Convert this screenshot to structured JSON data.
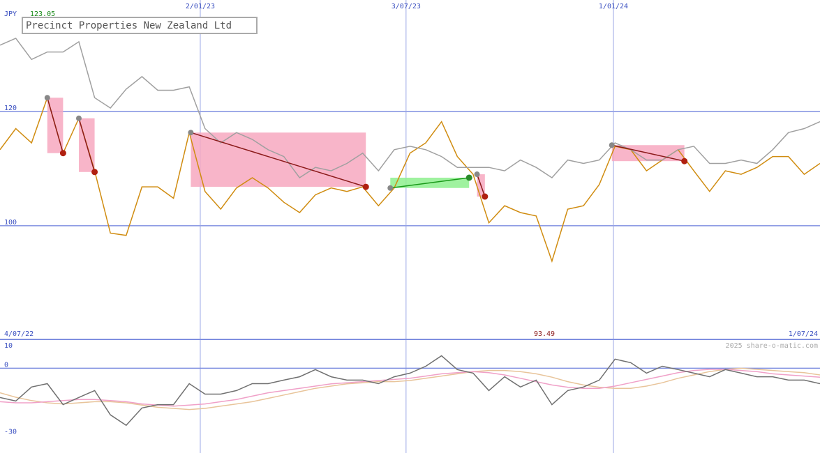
{
  "chart_data": [
    {
      "type": "line",
      "title": "Precinct Properties New Zealand Ltd",
      "currency": "JPY",
      "annotations": [
        {
          "text": "123.05",
          "color": "#1a8a1a"
        },
        {
          "text": "93.49",
          "color": "#8b1a1a"
        }
      ],
      "x": [
        0,
        2,
        4,
        6,
        8,
        10,
        12,
        14,
        16,
        18,
        20,
        22,
        24,
        26,
        28,
        30,
        32,
        34,
        36,
        38,
        40,
        42,
        44,
        46,
        48,
        50,
        52,
        54,
        56,
        58,
        60,
        62,
        64,
        66,
        68,
        70,
        72,
        74,
        76,
        78,
        80,
        82,
        84,
        86,
        88,
        90,
        92,
        94,
        96,
        98,
        100,
        102,
        104
      ],
      "xlim": [
        0,
        104
      ],
      "xticks": [
        {
          "value": 0,
          "label": "4/07/22"
        },
        {
          "value": 25.4,
          "label": "2/01/23"
        },
        {
          "value": 51.5,
          "label": "3/07/23"
        },
        {
          "value": 77.8,
          "label": "1/01/24"
        },
        {
          "value": 104,
          "label": "1/07/24"
        }
      ],
      "ylim": [
        80.1,
        139.5
      ],
      "yticks": [
        100,
        120
      ],
      "grid": true,
      "series": [
        {
          "color": "#d08c10",
          "values": [
            113.3,
            117.0,
            114.5,
            122.4,
            112.7,
            118.8,
            109.6,
            98.7,
            98.3,
            106.8,
            106.8,
            104.8,
            116.3,
            106.0,
            102.9,
            106.6,
            108.4,
            106.6,
            104.1,
            102.3,
            105.4,
            106.6,
            106.0,
            106.8,
            103.5,
            106.6,
            112.7,
            114.5,
            118.2,
            112.1,
            109.0,
            100.5,
            103.5,
            102.3,
            101.7,
            93.8,
            102.9,
            103.5,
            107.2,
            113.9,
            113.3,
            109.6,
            111.5,
            113.3,
            109.6,
            106.0,
            109.6,
            109.0,
            110.2,
            112.1,
            112.1,
            109.0,
            110.9
          ]
        },
        {
          "color": "#a0a0a0",
          "values": [
            131.6,
            132.8,
            129.1,
            130.4,
            130.4,
            132.2,
            122.4,
            120.6,
            123.9,
            126.1,
            123.7,
            123.7,
            124.3,
            117.0,
            114.5,
            116.3,
            115.1,
            113.3,
            112.1,
            108.4,
            110.2,
            109.6,
            110.9,
            112.7,
            109.6,
            113.3,
            113.9,
            113.3,
            112.1,
            110.2,
            110.2,
            110.2,
            109.6,
            111.5,
            110.2,
            108.4,
            111.5,
            110.9,
            111.5,
            114.5,
            113.3,
            111.5,
            111.5,
            113.3,
            113.9,
            110.9,
            110.9,
            111.5,
            110.9,
            113.3,
            116.3,
            117.0,
            118.2
          ]
        }
      ],
      "signals": [
        {
          "x": [
            6.0,
            8.0
          ],
          "y": [
            122.4,
            112.7
          ],
          "color": "#f7a8c0",
          "line": "#8b1a1a"
        },
        {
          "x": [
            10.0,
            12.0
          ],
          "y": [
            118.8,
            109.4
          ],
          "color": "#f7a8c0",
          "line": "#8b1a1a"
        },
        {
          "x": [
            24.2,
            46.4
          ],
          "y": [
            116.3,
            106.8
          ],
          "color": "#f7a8c0",
          "line": "#8b1a1a"
        },
        {
          "x": [
            49.5,
            59.5
          ],
          "y": [
            106.6,
            108.4
          ],
          "color": "#8ef08e",
          "line": "#1a9a1a"
        },
        {
          "x": [
            60.5,
            61.5
          ],
          "y": [
            109.0,
            105.1
          ],
          "color": "#f7a8c0",
          "line": "#8b1a1a"
        },
        {
          "x": [
            77.6,
            86.8
          ],
          "y": [
            114.1,
            111.3
          ],
          "color": "#f7a8c0",
          "line": "#8b1a1a"
        }
      ]
    },
    {
      "type": "line",
      "watermark": "2025 share-o-matic.com",
      "x": [
        0,
        2,
        4,
        6,
        8,
        10,
        12,
        14,
        16,
        18,
        20,
        22,
        24,
        26,
        28,
        30,
        32,
        34,
        36,
        38,
        40,
        42,
        44,
        46,
        48,
        50,
        52,
        54,
        56,
        58,
        60,
        62,
        64,
        66,
        68,
        70,
        72,
        74,
        76,
        78,
        80,
        82,
        84,
        86,
        88,
        90,
        92,
        94,
        96,
        98,
        100,
        102,
        104
      ],
      "xlim": [
        0,
        104
      ],
      "ylim": [
        -38,
        12
      ],
      "yticks": [
        10,
        0,
        -30
      ],
      "series": [
        {
          "color": "#e8c49a",
          "values": [
            -11,
            -13,
            -14.5,
            -15.5,
            -16,
            -15.5,
            -15,
            -15,
            -15.5,
            -16.5,
            -17.5,
            -18,
            -18.5,
            -18,
            -17,
            -16,
            -15,
            -13.5,
            -12,
            -10.5,
            -9,
            -8,
            -7,
            -6.5,
            -6,
            -6,
            -5.5,
            -4.5,
            -3.5,
            -2.5,
            -1.5,
            -1,
            -1,
            -1.5,
            -2.5,
            -4,
            -6,
            -7.5,
            -8.5,
            -9,
            -9,
            -8,
            -6.5,
            -4.5,
            -3,
            -1.5,
            -0.5,
            0,
            -0.5,
            -1,
            -1.5,
            -2,
            -3
          ]
        },
        {
          "color": "#f0a0c8",
          "values": [
            -15,
            -15.5,
            -15.5,
            -15,
            -14.5,
            -14,
            -14,
            -14.5,
            -15,
            -16,
            -16.5,
            -17,
            -16.5,
            -16,
            -15,
            -14,
            -12.5,
            -11,
            -10,
            -9,
            -8,
            -7,
            -6.5,
            -6,
            -5.5,
            -5,
            -4.5,
            -3.5,
            -2.5,
            -2,
            -1.5,
            -2,
            -3,
            -4.5,
            -6,
            -7.5,
            -8.5,
            -9,
            -9,
            -8,
            -6.5,
            -5,
            -3.5,
            -2,
            -1,
            -0.5,
            -0.5,
            -1,
            -1.5,
            -2.5,
            -3,
            -3.5,
            -4
          ]
        },
        {
          "color": "#707070",
          "values": [
            -13.1,
            -14.7,
            -8.4,
            -6.9,
            -16.3,
            -13.1,
            -10.0,
            -20.9,
            -25.6,
            -17.8,
            -16.3,
            -16.3,
            -6.9,
            -11.6,
            -11.6,
            -10.0,
            -6.9,
            -6.9,
            -5.3,
            -3.8,
            -0.6,
            -3.8,
            -5.3,
            -5.3,
            -6.9,
            -3.8,
            -2.2,
            0.9,
            5.6,
            -0.6,
            -2.2,
            -10.0,
            -3.8,
            -8.4,
            -5.3,
            -16.3,
            -10.0,
            -8.4,
            -5.3,
            4.1,
            2.5,
            -2.2,
            0.9,
            -0.6,
            -2.2,
            -3.8,
            -0.6,
            -2.2,
            -3.8,
            -3.8,
            -5.3,
            -5.3,
            -6.9
          ]
        }
      ]
    }
  ]
}
